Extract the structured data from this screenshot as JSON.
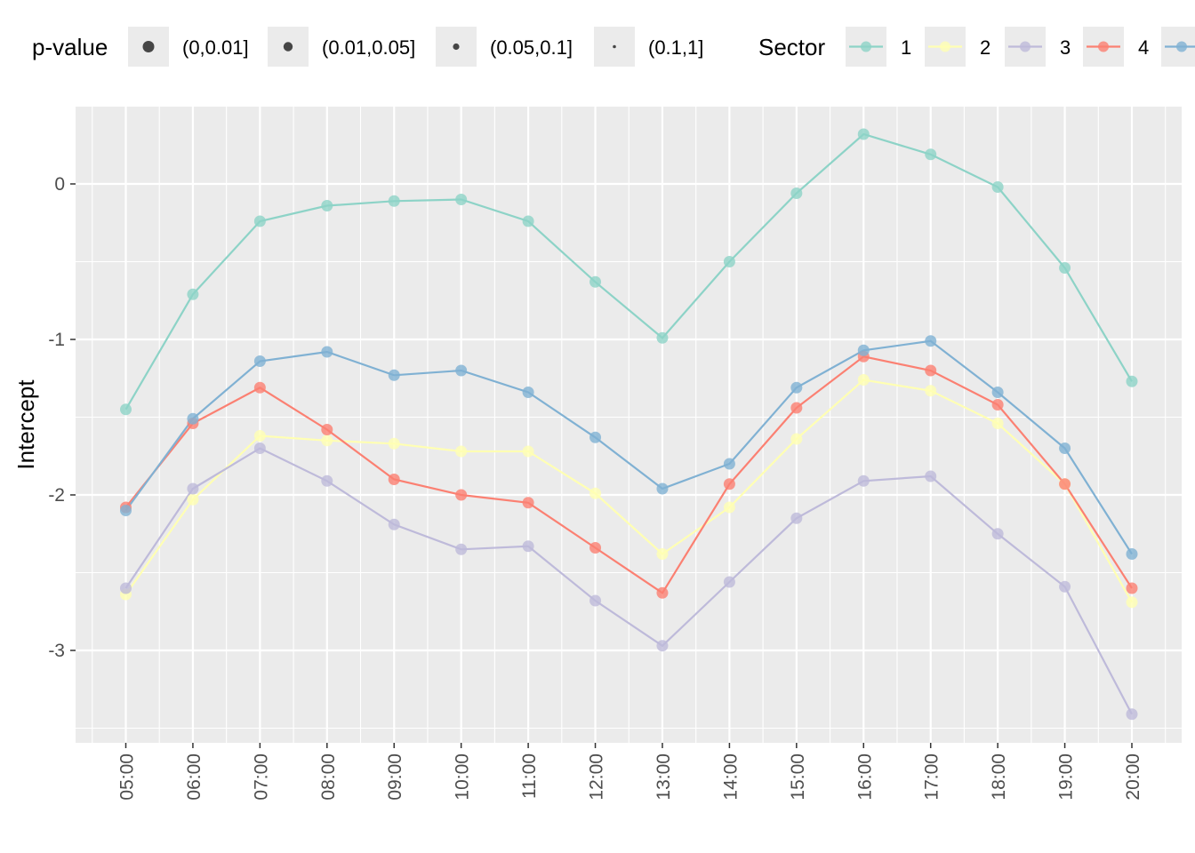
{
  "chart_data": {
    "type": "line",
    "xlabel": "",
    "ylabel": "Intercept",
    "ylim": [
      -3.55,
      0.5
    ],
    "yticks": [
      0,
      -1,
      -2,
      -3
    ],
    "grid": true,
    "categories": [
      "05:00",
      "06:00",
      "07:00",
      "08:00",
      "09:00",
      "10:00",
      "11:00",
      "12:00",
      "13:00",
      "14:00",
      "15:00",
      "16:00",
      "17:00",
      "18:00",
      "19:00",
      "20:00"
    ],
    "series": [
      {
        "name": "1",
        "color": "#8DD3C7",
        "values": [
          -1.45,
          -0.71,
          -0.24,
          -0.14,
          -0.11,
          -0.1,
          -0.24,
          -0.63,
          -0.99,
          -0.5,
          -0.06,
          0.32,
          0.19,
          -0.02,
          -0.54,
          -1.27
        ]
      },
      {
        "name": "2",
        "color": "#FFFFB3",
        "values": [
          -2.64,
          -2.03,
          -1.62,
          -1.65,
          -1.67,
          -1.72,
          -1.72,
          -1.99,
          -2.38,
          -2.08,
          -1.64,
          -1.26,
          -1.33,
          -1.54,
          -1.93,
          -2.69
        ]
      },
      {
        "name": "3",
        "color": "#BEBADA",
        "values": [
          -2.6,
          -1.96,
          -1.7,
          -1.91,
          -2.19,
          -2.35,
          -2.33,
          -2.68,
          -2.97,
          -2.56,
          -2.15,
          -1.91,
          -1.88,
          -2.25,
          -2.59,
          -3.41
        ]
      },
      {
        "name": "4",
        "color": "#FB8072",
        "values": [
          -2.08,
          -1.54,
          -1.31,
          -1.58,
          -1.9,
          -2.0,
          -2.05,
          -2.34,
          -2.63,
          -1.93,
          -1.44,
          -1.11,
          -1.2,
          -1.42,
          -1.93,
          -2.6
        ]
      },
      {
        "name": "",
        "color": "#80B1D3",
        "values": [
          -2.1,
          -1.51,
          -1.14,
          -1.08,
          -1.23,
          -1.2,
          -1.34,
          -1.63,
          -1.96,
          -1.8,
          -1.31,
          -1.07,
          -1.01,
          -1.34,
          -1.7,
          -2.38
        ]
      }
    ],
    "legend": {
      "placement": "top",
      "pvalue_title": "p-value",
      "pvalue_items": [
        "(0,0.01]",
        "(0.01,0.05]",
        "(0.05,0.1]",
        "(0.1,1]"
      ],
      "sector_title": "Sector",
      "sector_items": [
        "1",
        "2",
        "3",
        "4",
        ""
      ]
    }
  }
}
